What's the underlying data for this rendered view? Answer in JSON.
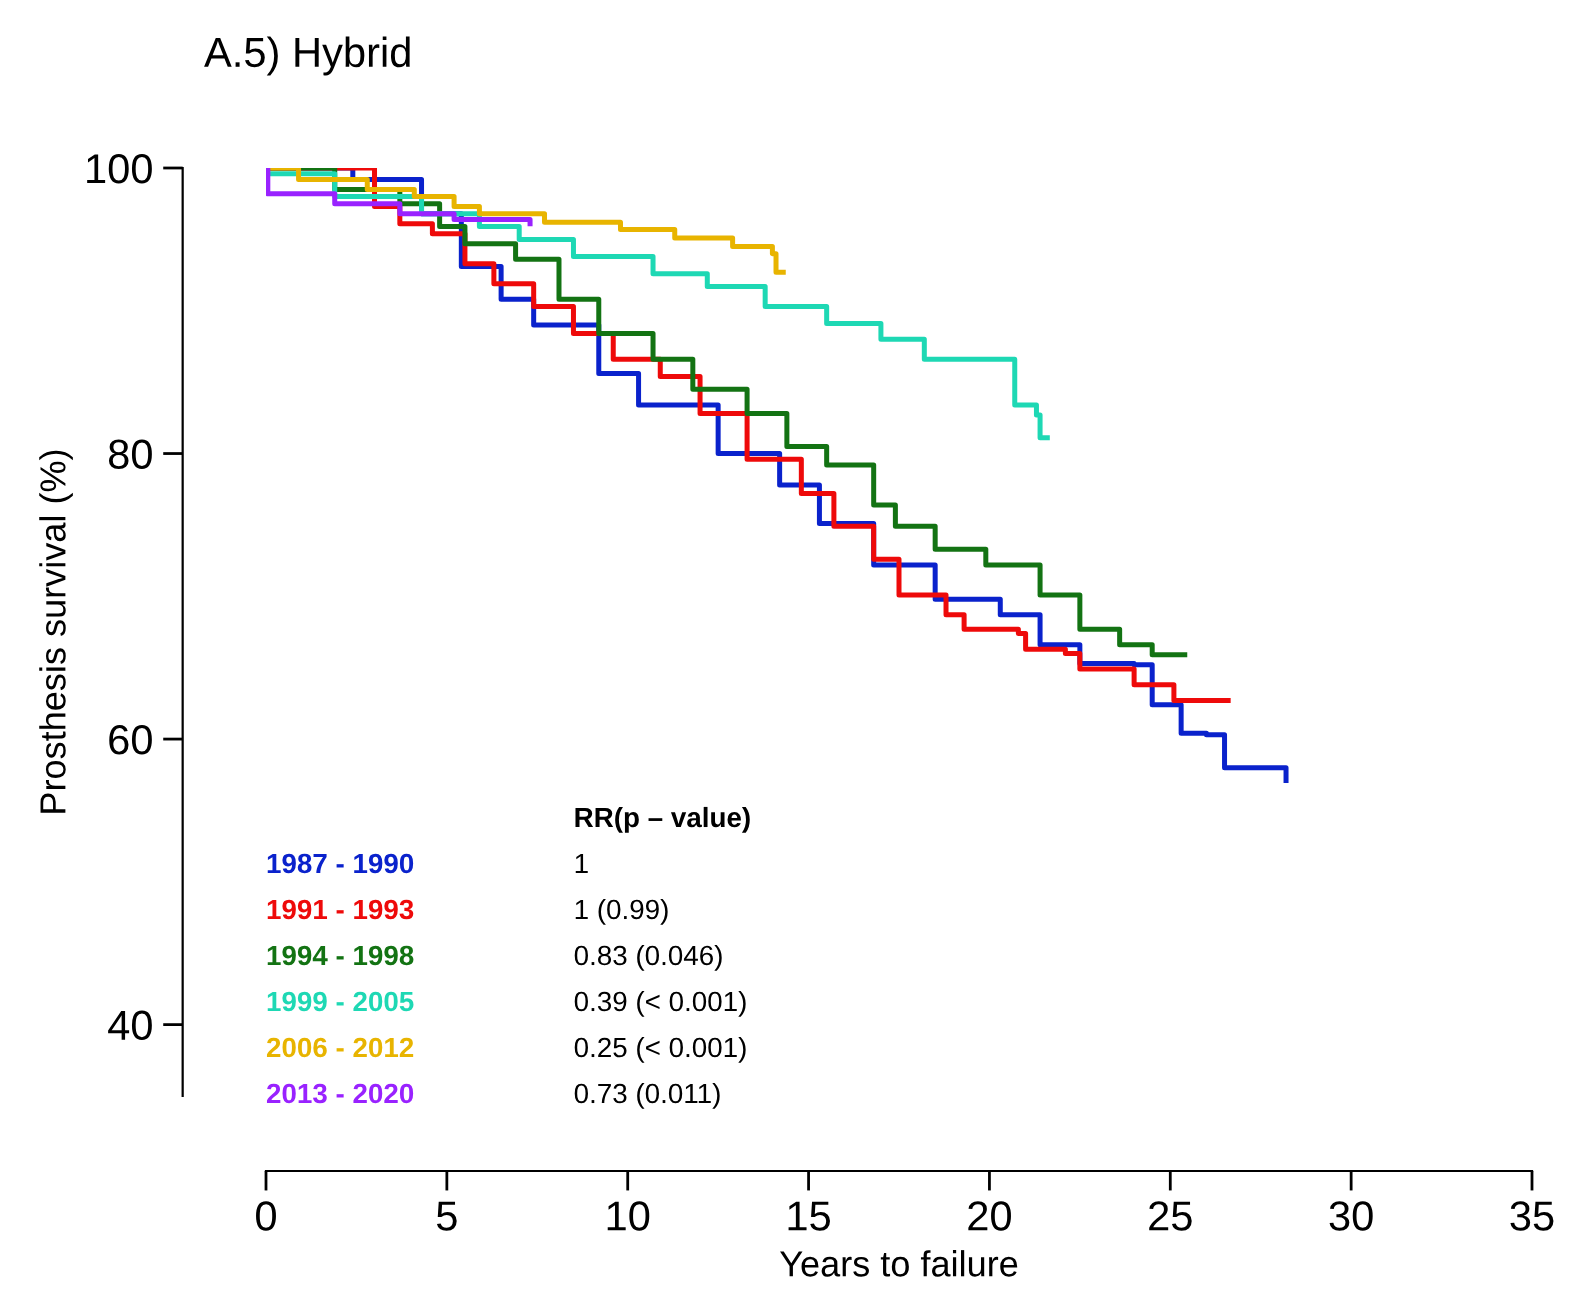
{
  "chart_data": {
    "type": "step",
    "title": "A.5) Hybrid",
    "xlabel": "Years to failure",
    "ylabel": "Prosthesis survival (%)",
    "xlim": [
      0,
      35
    ],
    "xticks": [
      0,
      5,
      10,
      15,
      20,
      25,
      30,
      35
    ],
    "ylim": [
      35,
      100
    ],
    "yticks": [
      40,
      60,
      80,
      100
    ],
    "grid": false,
    "legend": "bottom left",
    "series": [
      {
        "name": "1987 - 1990",
        "color": "#0a22cc",
        "x": [
          0,
          2.4,
          4.3,
          5.4,
          6.5,
          7.4,
          9.2,
          10.3,
          12.5,
          14.2,
          15.3,
          16.8,
          18.5,
          20.3,
          21.4,
          22.5,
          24,
          24.5,
          25.3,
          26,
          26.5,
          28.2
        ],
        "values": [
          100,
          99.2,
          96.8,
          93.1,
          90.8,
          89,
          85.6,
          83.4,
          80,
          77.8,
          75.1,
          72.2,
          69.8,
          68.7,
          66.6,
          65.3,
          65.2,
          62.4,
          60.4,
          60.3,
          58,
          57.1
        ]
      },
      {
        "name": "1991 - 1993",
        "color": "#ee0a0a",
        "x": [
          0,
          3,
          3.7,
          4.6,
          5.5,
          6.3,
          7.4,
          8.5,
          9.6,
          10.9,
          12,
          13.3,
          14.8,
          15.7,
          16.8,
          17.5,
          18.8,
          19.3,
          20.8,
          21,
          22.1,
          22.5,
          24,
          25.1,
          26.6
        ],
        "values": [
          100,
          97.3,
          96.1,
          95.4,
          93.3,
          91.9,
          90.3,
          88.4,
          86.6,
          85.4,
          82.8,
          79.6,
          77.2,
          74.9,
          72.6,
          70.1,
          68.7,
          67.7,
          67.4,
          66.3,
          66,
          64.9,
          63.8,
          62.7,
          62.7
        ]
      },
      {
        "name": "1994 - 1998",
        "color": "#137313",
        "x": [
          0,
          1.9,
          3.7,
          4.8,
          5.5,
          6.9,
          8.1,
          9.2,
          10.7,
          11.8,
          13.3,
          14.4,
          15.5,
          16.8,
          17.4,
          18.5,
          19.9,
          21.4,
          22.5,
          23.6,
          24.5,
          25.4
        ],
        "values": [
          100,
          98.5,
          97.5,
          95.9,
          94.7,
          93.6,
          90.8,
          88.4,
          86.6,
          84.5,
          82.8,
          80.5,
          79.2,
          76.4,
          74.9,
          73.3,
          72.2,
          70.1,
          67.7,
          66.6,
          65.9,
          65.9
        ]
      },
      {
        "name": "1999 - 2005",
        "color": "#1ed8b4",
        "x": [
          0,
          1.9,
          4.3,
          5.9,
          7,
          8.5,
          10.7,
          12.2,
          13.8,
          15.5,
          17,
          18.2,
          20.7,
          21.3,
          21.4,
          21.6
        ],
        "values": [
          99.6,
          98,
          96.8,
          95.9,
          95,
          93.8,
          92.6,
          91.7,
          90.3,
          89.1,
          88,
          86.6,
          83.4,
          82.7,
          81.1,
          81.1
        ]
      },
      {
        "name": "2006 - 2012",
        "color": "#e8b400",
        "x": [
          0,
          0.9,
          2.8,
          4.1,
          5.2,
          5.9,
          7.7,
          9.8,
          11.3,
          12.9,
          14,
          14.1,
          14.3
        ],
        "values": [
          100,
          99.2,
          98.5,
          98,
          97.3,
          96.8,
          96.2,
          95.7,
          95.1,
          94.5,
          94,
          92.7,
          92.7
        ]
      },
      {
        "name": "2013 - 2020",
        "color": "#9922ff",
        "x": [
          0,
          0.05,
          1.9,
          3.7,
          5.2,
          7.3
        ],
        "values": [
          100,
          98.2,
          97.5,
          96.8,
          96.4,
          96.1
        ]
      }
    ],
    "annotations": [
      "RR(p – value)",
      "1",
      "1 (0.99)",
      "0.83 (0.046)",
      "0.39 (< 0.001)",
      "0.25 (< 0.001)",
      "0.73 (0.011)"
    ]
  }
}
